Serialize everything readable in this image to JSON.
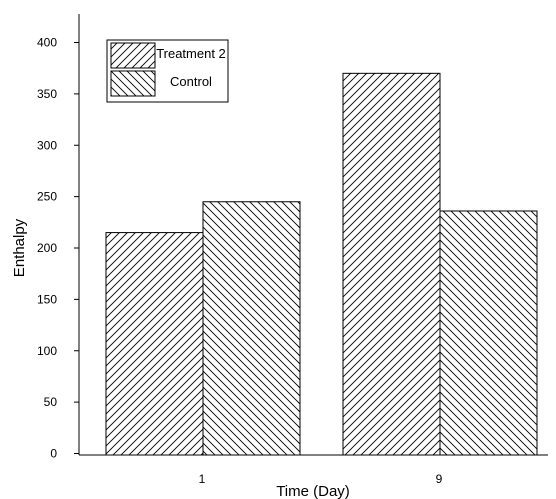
{
  "chart_data": {
    "type": "bar",
    "title": "",
    "xlabel": "Time (Day)",
    "ylabel": "Enthalpy",
    "categories": [
      "1",
      "9"
    ],
    "series": [
      {
        "name": "Treatment 2",
        "values": [
          215,
          370
        ],
        "hatch": "forward-diagonal"
      },
      {
        "name": "Control",
        "values": [
          245,
          236
        ],
        "hatch": "backward-diagonal"
      }
    ],
    "ylim": [
      0,
      420
    ],
    "yticks": [
      0,
      50,
      100,
      150,
      200,
      250,
      300,
      350,
      400
    ],
    "grid": false,
    "legend_position": "top-left",
    "colors": {
      "stroke": "#000000",
      "fill": "#ffffff"
    }
  }
}
